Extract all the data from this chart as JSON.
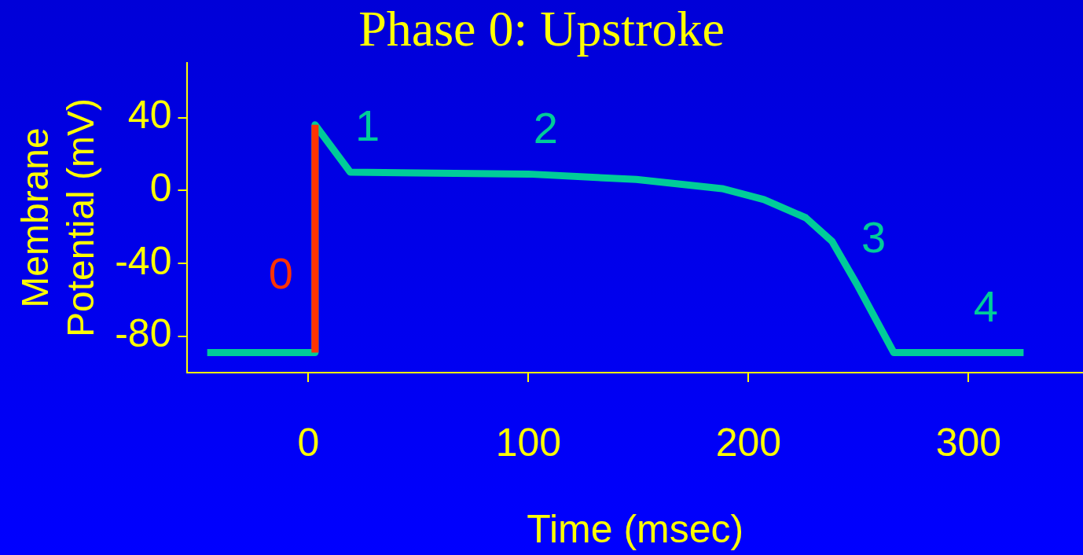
{
  "chart_data": {
    "type": "line",
    "title": "Phase 0: Upstroke",
    "xlabel": "Time (msec)",
    "ylabel": "Membrane Potential (mV)",
    "xlim": [
      -55,
      352
    ],
    "ylim": [
      -100,
      70
    ],
    "xticks": [
      0,
      100,
      200,
      300
    ],
    "yticks": [
      -80,
      -40,
      0,
      40
    ],
    "grid": false,
    "legend": false,
    "marker": "none",
    "line_style": "solid",
    "series": [
      {
        "color": "#00cc99",
        "x": [
          -46,
          3,
          3,
          19,
          100,
          149,
          188,
          207,
          226,
          238,
          249,
          266,
          300,
          325
        ],
        "values": [
          -89,
          -89,
          36,
          10,
          9,
          6,
          1,
          -5,
          -15,
          -28,
          -51,
          -89,
          -89,
          -89
        ]
      },
      {
        "color": "#ff3300",
        "x": [
          3,
          3,
          3
        ],
        "values": [
          -89,
          -47,
          36
        ]
      }
    ],
    "annotations": [
      {
        "text": "0",
        "x": 3,
        "y": -47
      },
      {
        "text": "1",
        "x": 19,
        "y": 10
      },
      {
        "text": "2",
        "x": 100,
        "y": 9
      },
      {
        "text": "3",
        "x": 249,
        "y": -51
      },
      {
        "text": "4",
        "x": 300,
        "y": -89
      }
    ]
  }
}
